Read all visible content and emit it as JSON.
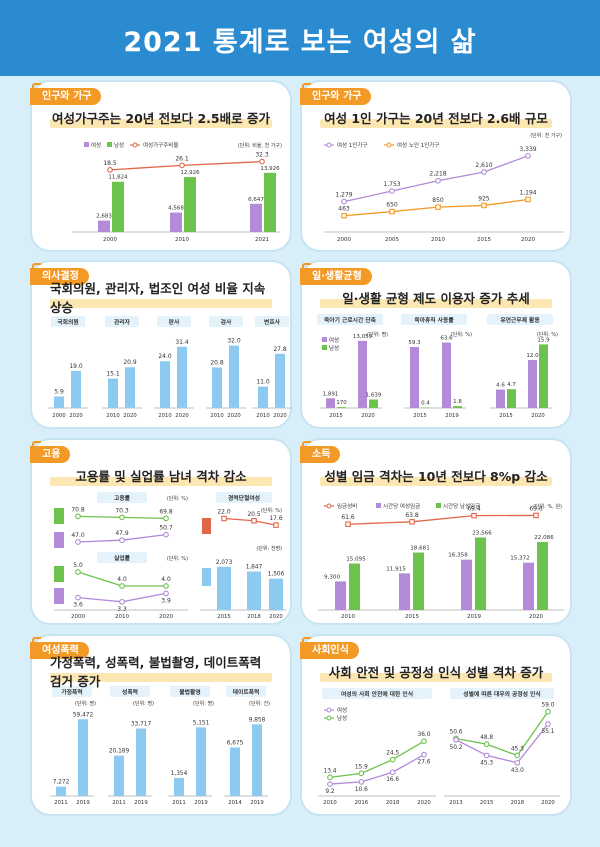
{
  "page": {
    "title": "2021 통계로 보는 여성의 삶",
    "colors": {
      "blue": "#2b8bd0",
      "female": "#b28ad8",
      "male": "#6cc24a",
      "ratio": "#e2664a",
      "orange": "#f39a26",
      "lightblue": "#8ccbef",
      "wage": "#e2664a"
    }
  },
  "panels": {
    "p1": {
      "tag": "인구와 가구",
      "subtitle": "여성가구주는 20년 전보다 2.5배로 증가"
    },
    "p2": {
      "tag": "인구와 가구",
      "subtitle": "여성 1인 가구는 20년 전보다 2.6배 규모"
    },
    "p3": {
      "tag": "의사결정",
      "subtitle": "국회의원, 관리자, 법조인 여성 비율 지속 상승"
    },
    "p4": {
      "tag": "일·생활균형",
      "subtitle": "일·생활 균형 제도 이용자 증가 추세"
    },
    "p5": {
      "tag": "고용",
      "subtitle": "고용률 및 실업률 남녀 격차 감소"
    },
    "p6": {
      "tag": "소득",
      "subtitle": "성별 임금 격차는 10년 전보다 8%p 감소"
    },
    "p7": {
      "tag": "여성폭력",
      "subtitle": "가정폭력, 성폭력, 불법촬영, 데이트폭력 검거 증가"
    },
    "p8": {
      "tag": "사회인식",
      "subtitle": "사회 안전 및 공정성 인식 성별 격차 증가"
    }
  },
  "chart_data": [
    {
      "id": "household_heads",
      "type": "bar",
      "categories": [
        "2000",
        "2010",
        "2021"
      ],
      "series": [
        {
          "name": "여성",
          "values": [
            2683,
            4568,
            6647
          ]
        },
        {
          "name": "남성",
          "values": [
            11824,
            12926,
            13926
          ]
        }
      ],
      "line": {
        "name": "여성가구주비율",
        "values": [
          18.5,
          26.1,
          32.3
        ]
      },
      "labels": {
        "female": [
          "2,683",
          "4,568",
          "6,647"
        ],
        "male": [
          "11,824",
          "12,926",
          "13,926"
        ],
        "ratio": [
          "18.5",
          "26.1",
          "32.3"
        ]
      },
      "unit": "(단위: 비율, 천 가구)"
    },
    {
      "id": "single_households",
      "type": "line",
      "categories": [
        "2000",
        "2005",
        "2010",
        "2015",
        "2020"
      ],
      "series": [
        {
          "name": "여성 1인가구",
          "values": [
            1279,
            1753,
            2218,
            2610,
            3339
          ],
          "labels": [
            "1,279",
            "1,753",
            "2,218",
            "2,610",
            "3,339"
          ]
        },
        {
          "name": "여성 노인 1인가구",
          "values": [
            463,
            650,
            850,
            925,
            1194
          ],
          "labels": [
            "463",
            "650",
            "850",
            "925",
            "1,194"
          ]
        }
      ],
      "unit": "(단위: 천 가구)"
    },
    {
      "id": "decision_making",
      "type": "bar",
      "groups": [
        {
          "name": "국회의원",
          "categories": [
            "2000",
            "2020"
          ],
          "values": [
            5.9,
            19.0
          ],
          "labels": [
            "5.9",
            "19.0"
          ]
        },
        {
          "name": "관리자",
          "categories": [
            "2010",
            "2020"
          ],
          "values": [
            15.1,
            20.9
          ],
          "labels": [
            "15.1",
            "20.9"
          ]
        },
        {
          "name": "판사",
          "categories": [
            "2010",
            "2020"
          ],
          "values": [
            24.0,
            31.4
          ],
          "labels": [
            "24.0",
            "31.4"
          ]
        },
        {
          "name": "검사",
          "categories": [
            "2010",
            "2020"
          ],
          "values": [
            20.8,
            32.0
          ],
          "labels": [
            "20.8",
            "32.0"
          ]
        },
        {
          "name": "변호사",
          "categories": [
            "2010",
            "2020"
          ],
          "values": [
            11.0,
            27.8
          ],
          "labels": [
            "11.0",
            "27.8"
          ]
        }
      ],
      "unit": "(단위: %)"
    },
    {
      "id": "work_life_balance",
      "type": "bar",
      "legend": [
        "여성",
        "남성"
      ],
      "groups": [
        {
          "name": "육아기 근로시간 단축",
          "unit": "(단위: 명)",
          "categories": [
            "2015",
            "2020"
          ],
          "female": [
            1891,
            13059
          ],
          "male": [
            170,
            1639
          ],
          "female_labels": [
            "1,891",
            "13,059"
          ],
          "male_labels": [
            "170",
            "1,639"
          ]
        },
        {
          "name": "육아휴직 사용률",
          "unit": "(단위: %)",
          "categories": [
            "2015",
            "2019"
          ],
          "female": [
            59.3,
            63.6
          ],
          "male": [
            0.4,
            1.8
          ],
          "female_labels": [
            "59.3",
            "63.6"
          ],
          "male_labels": [
            "0.4",
            "1.8"
          ]
        },
        {
          "name": "유연근무제 활용",
          "unit": "(단위: %)",
          "categories": [
            "2015",
            "2020"
          ],
          "female": [
            4.6,
            12.0
          ],
          "male": [
            4.7,
            15.9
          ],
          "female_labels": [
            "4.6",
            "12.0"
          ],
          "male_labels": [
            "4.7",
            "15.9"
          ]
        }
      ]
    },
    {
      "id": "employment",
      "type": "line",
      "categories": [
        "2000",
        "2010",
        "2020"
      ],
      "employment_rate": {
        "title": "고용률",
        "unit": "(단위: %)",
        "male": [
          70.8,
          70.3,
          69.8
        ],
        "female": [
          47.0,
          47.9,
          50.7
        ],
        "male_labels": [
          "70.8",
          "70.3",
          "69.8"
        ],
        "female_labels": [
          "47.0",
          "47.9",
          "50.7"
        ]
      },
      "unemployment_rate": {
        "title": "실업률",
        "unit": "(단위: %)",
        "male": [
          5.0,
          4.0,
          4.0
        ],
        "female": [
          3.6,
          3.3,
          3.9
        ],
        "male_labels": [
          "5.0",
          "4.0",
          "4.0"
        ],
        "female_labels": [
          "3.6",
          "3.3",
          "3.9"
        ]
      },
      "career_break": {
        "title": "경력단절여성",
        "unit": "(단위: 천명)",
        "categories": [
          "2015",
          "2018",
          "2020"
        ],
        "counts": [
          2073,
          1847,
          1506
        ],
        "count_labels": [
          "2,073",
          "1,847",
          "1,506"
        ],
        "ratio": [
          22.0,
          20.5,
          17.6
        ],
        "ratio_labels": [
          "22.0",
          "20.5",
          "17.6"
        ]
      }
    },
    {
      "id": "income",
      "type": "bar",
      "categories": [
        "2010",
        "2015",
        "2019",
        "2020"
      ],
      "series": [
        {
          "name": "시간당 여성임금",
          "values": [
            9300,
            11915,
            16358,
            15372
          ],
          "labels": [
            "9,300",
            "11,915",
            "16,358",
            "15,372"
          ]
        },
        {
          "name": "시간당 남성임금",
          "values": [
            15095,
            18681,
            23566,
            22086
          ],
          "labels": [
            "15,095",
            "18,681",
            "23,566",
            "22,086"
          ]
        }
      ],
      "line": {
        "name": "임금성비",
        "values": [
          61.6,
          63.8,
          69.4,
          69.6
        ],
        "labels": [
          "61.6",
          "63.8",
          "69.4",
          "69.6"
        ]
      },
      "unit": "(단위: %, 원)"
    },
    {
      "id": "violence",
      "type": "bar",
      "groups": [
        {
          "name": "가정폭력",
          "unit": "(단위: 명)",
          "categories": [
            "2011",
            "2019"
          ],
          "values": [
            7272,
            59472
          ],
          "labels": [
            "7,272",
            "59,472"
          ]
        },
        {
          "name": "성폭력",
          "unit": "(단위: 명)",
          "categories": [
            "2011",
            "2019"
          ],
          "values": [
            20189,
            33717
          ],
          "labels": [
            "20,189",
            "33,717"
          ]
        },
        {
          "name": "불법촬영",
          "unit": "(단위: 명)",
          "categories": [
            "2011",
            "2019"
          ],
          "values": [
            1354,
            5151
          ],
          "labels": [
            "1,354",
            "5,151"
          ]
        },
        {
          "name": "데이트폭력",
          "unit": "(단위: 건)",
          "categories": [
            "2014",
            "2019"
          ],
          "values": [
            6675,
            9858
          ],
          "labels": [
            "6,675",
            "9,858"
          ]
        }
      ]
    },
    {
      "id": "social_perception",
      "type": "line",
      "legend": [
        "여성",
        "남성"
      ],
      "safety": {
        "title": "여성의 사회 안전에 대한 인식",
        "categories": [
          "2010",
          "2016",
          "2018",
          "2020"
        ],
        "male": [
          13.4,
          15.9,
          24.5,
          36.0
        ],
        "female": [
          9.2,
          10.6,
          16.6,
          27.6
        ],
        "male_labels": [
          "13.4",
          "15.9",
          "24.5",
          "36.0"
        ],
        "female_labels": [
          "9.2",
          "10.6",
          "16.6",
          "27.6"
        ]
      },
      "fairness": {
        "title": "성별에 따른 대우의 공정성 인식",
        "categories": [
          "2013",
          "2015",
          "2018",
          "2020"
        ],
        "male": [
          50.6,
          48.8,
          45.3,
          59.0
        ],
        "female": [
          50.2,
          45.3,
          43.0,
          55.1
        ],
        "male_labels": [
          "50.6",
          "48.8",
          "45.3",
          "59.0"
        ],
        "female_labels": [
          "50.2",
          "45.3",
          "43.0",
          "55.1"
        ]
      }
    }
  ]
}
